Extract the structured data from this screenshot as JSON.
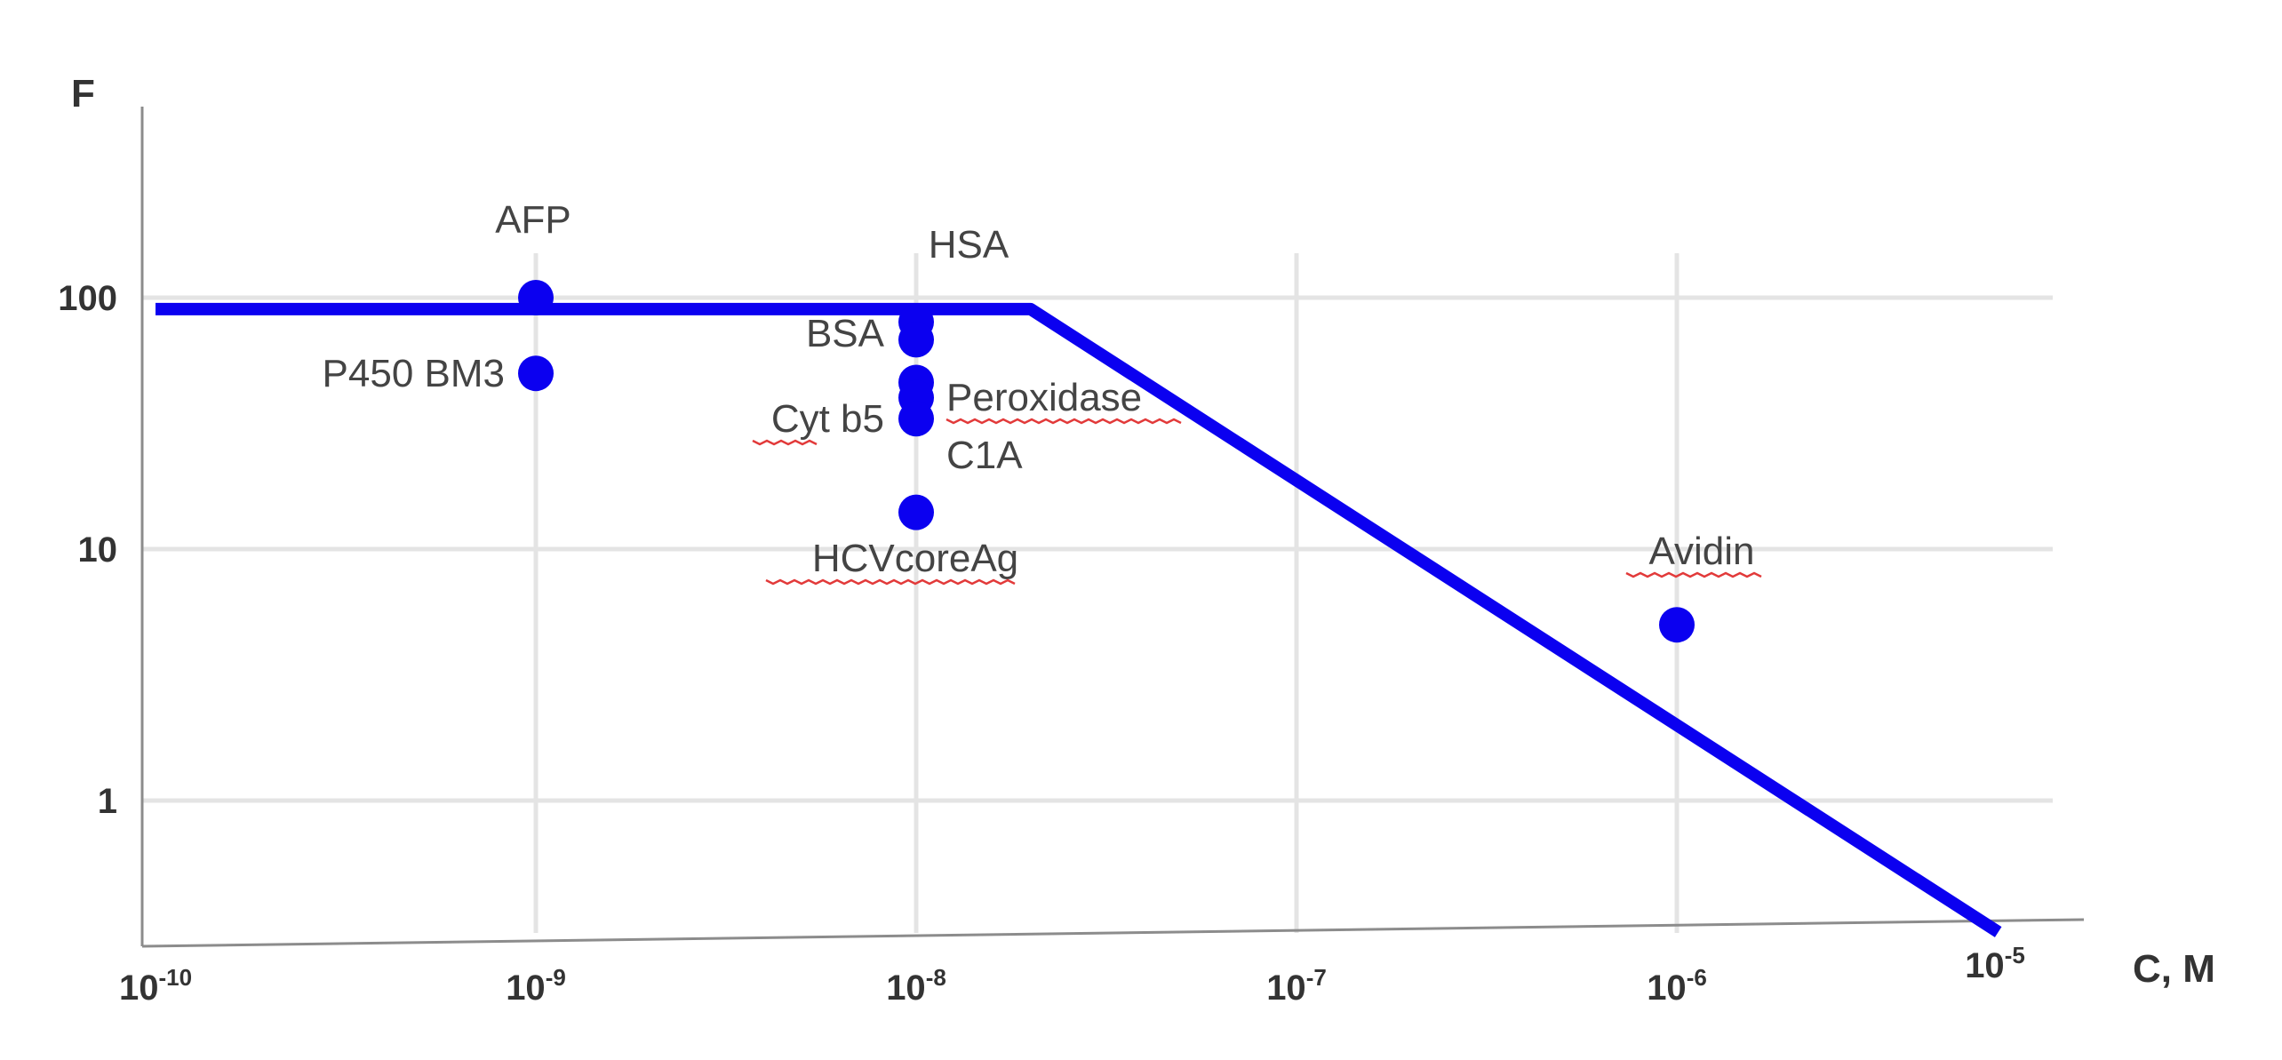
{
  "chart_data": {
    "type": "scatter",
    "xlabel": "C, M",
    "ylabel": "F",
    "x_scale": "log",
    "y_scale": "log",
    "xlim": [
      1e-10,
      1e-05
    ],
    "ylim": [
      0.3,
      1000
    ],
    "x_ticks": [
      {
        "base": "10",
        "exp": "-10",
        "value": 1e-10
      },
      {
        "base": "10",
        "exp": "-9",
        "value": 1e-09
      },
      {
        "base": "10",
        "exp": "-8",
        "value": 1e-08
      },
      {
        "base": "10",
        "exp": "-7",
        "value": 1e-07
      },
      {
        "base": "10",
        "exp": "-6",
        "value": 1e-06
      },
      {
        "base": "10",
        "exp": "-5",
        "value": 1e-05
      }
    ],
    "y_ticks": [
      {
        "label": "100",
        "value": 100
      },
      {
        "label": "10",
        "value": 10
      },
      {
        "label": "1",
        "value": 1
      }
    ],
    "grid": true,
    "trend_line": [
      {
        "x": 1e-10,
        "y": 90
      },
      {
        "x": 2e-08,
        "y": 90
      },
      {
        "x": 7e-06,
        "y": 0.3
      }
    ],
    "points": [
      {
        "x": 1e-09,
        "y": 100
      },
      {
        "x": 1e-09,
        "y": 50
      },
      {
        "x": 1e-08,
        "y": 80
      },
      {
        "x": 1e-08,
        "y": 68
      },
      {
        "x": 1e-08,
        "y": 46
      },
      {
        "x": 1e-08,
        "y": 40
      },
      {
        "x": 1e-08,
        "y": 33
      },
      {
        "x": 1e-08,
        "y": 14
      },
      {
        "x": 1e-06,
        "y": 5
      }
    ],
    "point_labels": [
      {
        "text": "AFP"
      },
      {
        "text": "P450 BM3"
      },
      {
        "text": "HSA"
      },
      {
        "text": "BSA"
      },
      {
        "text": "Cyt b5"
      },
      {
        "text": "Peroxidase"
      },
      {
        "text": "C1A"
      },
      {
        "text": "HCVcoreAg"
      },
      {
        "text": "Avidin"
      }
    ],
    "colors": {
      "series": "#0b00f0",
      "grid": "#e4e4e4",
      "axis": "#8c8c8c",
      "text": "#333333"
    }
  }
}
